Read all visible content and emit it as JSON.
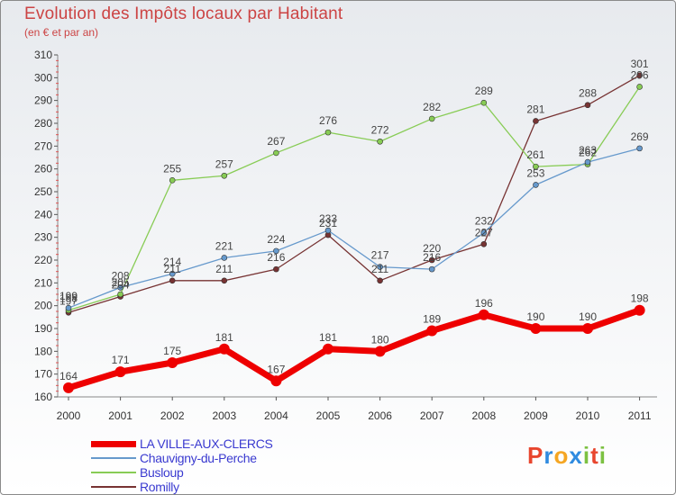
{
  "title": "Evolution des Impôts locaux par Habitant",
  "subtitle": "(en € et par an)",
  "logo": {
    "text": "Proxiti",
    "letters": [
      "P",
      "r",
      "o",
      "x",
      "i",
      "t",
      "i"
    ],
    "colors": [
      "#e8462e",
      "#2f8be0",
      "#f5a623",
      "#2f8be0",
      "#7cc142",
      "#e8462e",
      "#7cc142"
    ]
  },
  "chart_data": {
    "type": "line",
    "title": "Evolution des Impôts locaux par Habitant",
    "subtitle": "(en € et par an)",
    "x": [
      2000,
      2001,
      2002,
      2003,
      2004,
      2005,
      2006,
      2007,
      2008,
      2009,
      2010,
      2011
    ],
    "ylim": [
      160,
      310
    ],
    "yticks": [
      160,
      170,
      180,
      190,
      200,
      210,
      220,
      230,
      240,
      250,
      260,
      270,
      280,
      290,
      300,
      310
    ],
    "grid": false,
    "legend_position": "bottom-left",
    "series": [
      {
        "name": "LA VILLE-AUX-CLERCS",
        "color": "#ee0000",
        "values": [
          164,
          171,
          175,
          181,
          167,
          181,
          180,
          189,
          196,
          190,
          190,
          198
        ]
      },
      {
        "name": "Chauvigny-du-Perche",
        "color": "#6699cc",
        "values": [
          199,
          208,
          214,
          221,
          224,
          233,
          217,
          216,
          232,
          253,
          263,
          269
        ]
      },
      {
        "name": "Busloup",
        "color": "#88cc55",
        "values": [
          198,
          205,
          255,
          257,
          267,
          276,
          272,
          282,
          289,
          261,
          262,
          296
        ]
      },
      {
        "name": "Romilly",
        "color": "#773333",
        "values": [
          197,
          204,
          211,
          211,
          216,
          231,
          211,
          220,
          227,
          281,
          288,
          301
        ]
      }
    ]
  }
}
